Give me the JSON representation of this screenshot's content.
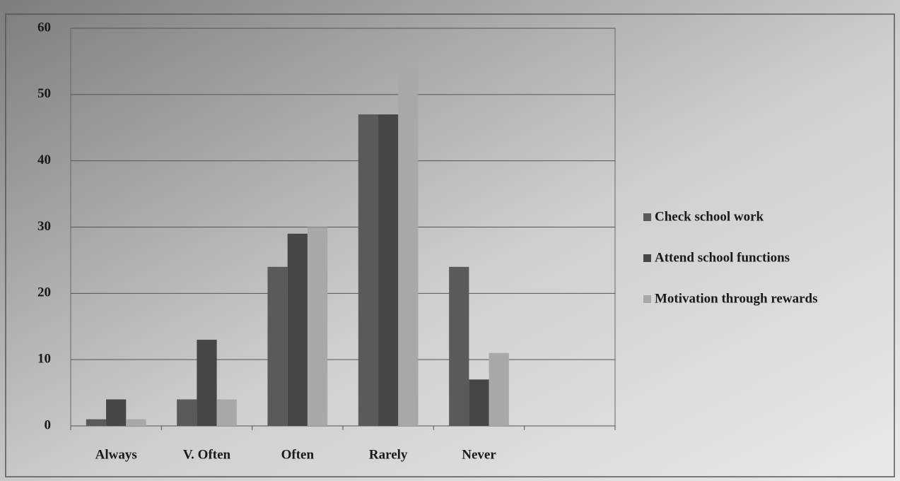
{
  "chart_data": {
    "type": "bar",
    "categories": [
      "Always",
      "V. Often",
      "Often",
      "Rarely",
      "Never",
      null
    ],
    "series": [
      {
        "name": "Check school work",
        "color": "#5a5a5a",
        "values": [
          1,
          4,
          24,
          47,
          24,
          null
        ]
      },
      {
        "name": "Attend school functions",
        "color": "#464646",
        "values": [
          4,
          13,
          29,
          47,
          7,
          null
        ]
      },
      {
        "name": "Motivation through rewards",
        "color": "#a8a8a8",
        "values": [
          1,
          4,
          30,
          54,
          11,
          null
        ]
      }
    ],
    "ylim": [
      0,
      60
    ],
    "yticks": [
      0,
      10,
      20,
      30,
      40,
      50,
      60
    ],
    "grid": true,
    "legend": "right"
  }
}
